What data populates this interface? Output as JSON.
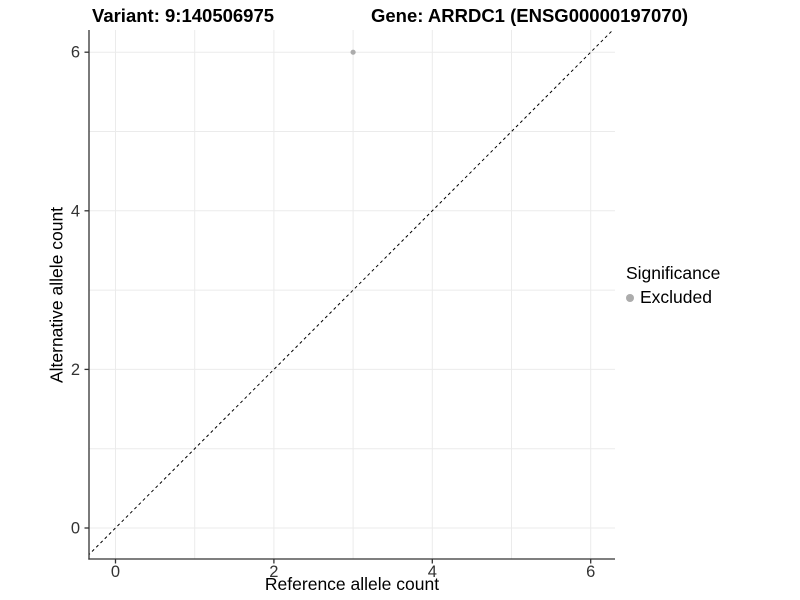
{
  "chart_data": {
    "type": "scatter",
    "title_left": "Variant: 9:140506975",
    "title_right": "Gene: ARRDC1 (ENSG00000197070)",
    "xlabel": "Reference allele count",
    "ylabel": "Alternative allele count",
    "xlim": [
      -0.35,
      6.35
    ],
    "ylim": [
      -0.35,
      6.35
    ],
    "xticks": [
      0,
      2,
      4,
      6
    ],
    "yticks": [
      0,
      2,
      4,
      6
    ],
    "xgridlines": [
      0,
      1,
      2,
      3,
      4,
      5,
      6
    ],
    "ygridlines": [
      0,
      1,
      2,
      3,
      4,
      5,
      6
    ],
    "series": [
      {
        "name": "Excluded",
        "color": "#acacac",
        "points": [
          {
            "x": 3,
            "y": 6
          }
        ]
      }
    ],
    "reference_line": {
      "type": "identity",
      "style": "dashed",
      "color": "#000000"
    },
    "legend": {
      "position": "right",
      "title": "Significance",
      "items": [
        {
          "label": "Excluded",
          "color": "#acacac"
        }
      ]
    },
    "grid": true,
    "colors": {
      "gridline": "#ebebeb",
      "axis": "#333333",
      "tick_label": "#333333",
      "title": "#000000"
    }
  }
}
